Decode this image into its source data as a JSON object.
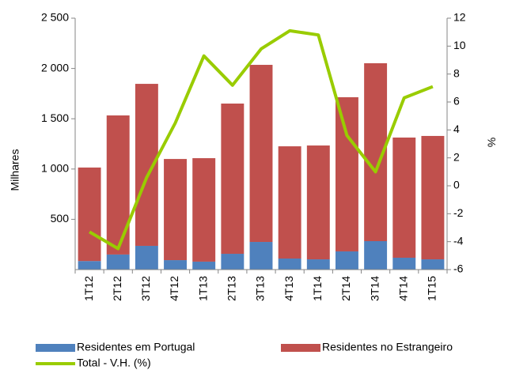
{
  "chart_data": {
    "type": "bar",
    "y_label": "Milhares",
    "y2_label": "%",
    "categories": [
      "1T12",
      "2T12",
      "3T12",
      "4T12",
      "1T13",
      "2T13",
      "3T13",
      "4T13",
      "1T14",
      "2T14",
      "3T14",
      "4T14",
      "1T15"
    ],
    "series": [
      {
        "name": "Residentes em Portugal",
        "color": "#4f81bd",
        "type": "bar",
        "values": [
          85,
          150,
          236,
          94,
          79,
          157,
          275,
          110,
          102,
          181,
          283,
          118,
          102
        ]
      },
      {
        "name": "Residentes no Estrangeiro",
        "color": "#c0504d",
        "type": "bar",
        "values": [
          930,
          1383,
          1611,
          1006,
          1029,
          1494,
          1761,
          1116,
          1132,
          1533,
          1769,
          1195,
          1227
        ]
      },
      {
        "name": "Total - V.H. (%)",
        "color": "#99cc00",
        "type": "line",
        "axis": "y2",
        "values": [
          -3.3,
          -4.5,
          0.6,
          4.5,
          9.3,
          7.2,
          9.8,
          11.1,
          10.8,
          3.6,
          1.0,
          6.3,
          7.1
        ]
      }
    ],
    "ylim": [
      0,
      2500
    ],
    "yticks": [
      500,
      {
        "value": 1000,
        "label": "1 000"
      },
      {
        "value": 1500,
        "label": "1 500"
      },
      {
        "value": 2000,
        "label": "2 000"
      },
      {
        "value": 2500,
        "label": "2 500"
      }
    ],
    "y2lim": [
      -6,
      12
    ],
    "y2ticks": [
      -6,
      -4,
      -2,
      0,
      2,
      4,
      6,
      8,
      10,
      12
    ],
    "stacked": true
  }
}
